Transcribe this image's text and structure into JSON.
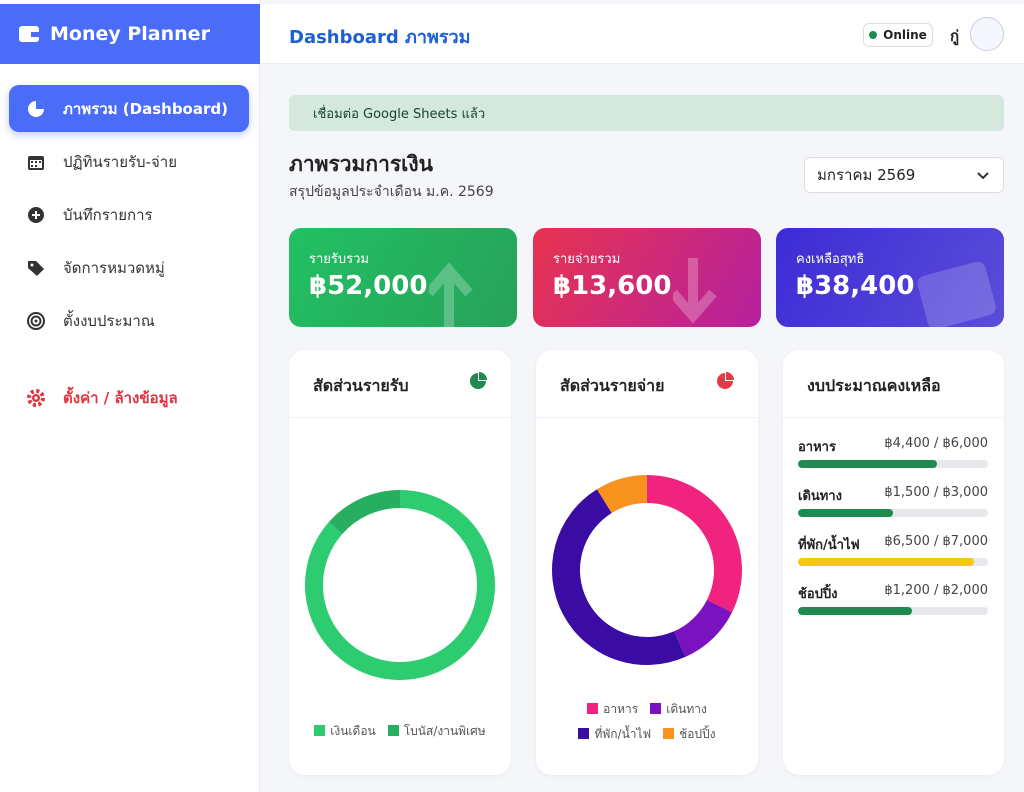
{
  "sidebar": {
    "brand": "Money Planner",
    "nav": [
      {
        "label": "ภาพรวม (Dashboard)",
        "active": true
      },
      {
        "label": "ปฏิทินรายรับ-จ่าย"
      },
      {
        "label": "บันทึกรายการ"
      },
      {
        "label": "จัดการหมวดหมู่"
      },
      {
        "label": "ตั้งงบประมาณ"
      }
    ],
    "settings": "ตั้งค่า / ล้างข้อมูล"
  },
  "header": {
    "title": "Dashboard ภาพรวม",
    "status": "Online",
    "user": "กู่"
  },
  "alert": "เชื่อมต่อ Google Sheets แล้ว",
  "overview": {
    "title": "ภาพรวมการเงิน",
    "subtitle": "สรุปข้อมูลประจำเดือน ม.ค. 2569",
    "month": "มกราคม 2569"
  },
  "cards": [
    {
      "label": "รายรับรวม",
      "value": "฿52,000"
    },
    {
      "label": "รายจ่ายรวม",
      "value": "฿13,600"
    },
    {
      "label": "คงเหลือสุทธิ",
      "value": "฿38,400"
    }
  ],
  "charts": [
    {
      "type": "donut",
      "title": "สัดส่วนรายรับ",
      "icon_color": "#1e8a4f",
      "series": [
        {
          "name": "เงินเดือน",
          "color": "#2ecc71",
          "value": 45000
        },
        {
          "name": "โบนัส/งานพิเศษ",
          "color": "#27ae60",
          "value": 7000
        }
      ]
    },
    {
      "type": "donut",
      "title": "สัดส่วนรายจ่าย",
      "icon_color": "#e63946",
      "series": [
        {
          "name": "อาหาร",
          "color": "#f0247f",
          "value": 4400
        },
        {
          "name": "เดินทาง",
          "color": "#7b12c0",
          "value": 1500
        },
        {
          "name": "ที่พัก/น้ำไฟ",
          "color": "#3a0ca3",
          "value": 6500
        },
        {
          "name": "ช้อปปิ้ง",
          "color": "#f7931e",
          "value": 1200
        }
      ]
    }
  ],
  "budget": {
    "title": "งบประมาณคงเหลือ",
    "items": [
      {
        "name": "อาหาร",
        "label": "฿4,400 / ฿6,000",
        "spent": 4400,
        "limit": 6000,
        "color": "#1e8a4f"
      },
      {
        "name": "เดินทาง",
        "label": "฿1,500 / ฿3,000",
        "spent": 1500,
        "limit": 3000,
        "color": "#1e8a4f"
      },
      {
        "name": "ที่พัก/น้ำไฟ",
        "label": "฿6,500 / ฿7,000",
        "spent": 6500,
        "limit": 7000,
        "color": "#f5c518"
      },
      {
        "name": "ช้อปปิ้ง",
        "label": "฿1,200 / ฿2,000",
        "spent": 1200,
        "limit": 2000,
        "color": "#1e8a4f"
      }
    ]
  }
}
